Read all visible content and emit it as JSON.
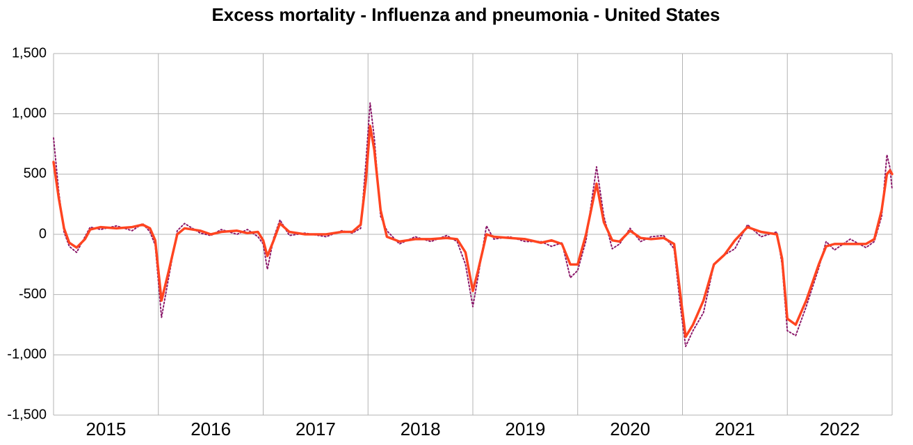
{
  "chart_data": {
    "type": "line",
    "title": "Excess mortality - Influenza and pneumonia - United States",
    "x": [
      2015.0,
      2015.05,
      2015.1,
      2015.15,
      2015.22,
      2015.3,
      2015.35,
      2015.45,
      2015.6,
      2015.75,
      2015.85,
      2015.92,
      2015.97,
      2016.03,
      2016.1,
      2016.18,
      2016.25,
      2016.4,
      2016.5,
      2016.6,
      2016.75,
      2016.85,
      2016.95,
      2017.0,
      2017.04,
      2017.1,
      2017.16,
      2017.25,
      2017.4,
      2017.6,
      2017.75,
      2017.85,
      2017.93,
      2017.98,
      2018.02,
      2018.06,
      2018.12,
      2018.18,
      2018.3,
      2018.45,
      2018.6,
      2018.75,
      2018.85,
      2018.93,
      2019.0,
      2019.05,
      2019.13,
      2019.2,
      2019.35,
      2019.5,
      2019.65,
      2019.75,
      2019.85,
      2019.93,
      2020.0,
      2020.08,
      2020.18,
      2020.25,
      2020.33,
      2020.4,
      2020.5,
      2020.6,
      2020.7,
      2020.82,
      2020.92,
      2020.98,
      2021.03,
      2021.1,
      2021.2,
      2021.3,
      2021.4,
      2021.5,
      2021.62,
      2021.75,
      2021.9,
      2021.95,
      2022.0,
      2022.08,
      2022.18,
      2022.3,
      2022.37,
      2022.45,
      2022.6,
      2022.75,
      2022.83,
      2022.9,
      2022.95,
      2022.98,
      2023.0
    ],
    "series": [
      {
        "color": "#8b1a6b",
        "dashed": true,
        "width": 2,
        "values": [
          800,
          350,
          20,
          -100,
          -150,
          -20,
          60,
          40,
          70,
          30,
          90,
          20,
          -90,
          -690,
          -350,
          30,
          90,
          10,
          -10,
          40,
          0,
          40,
          -20,
          -80,
          -290,
          -30,
          120,
          -10,
          10,
          -20,
          30,
          10,
          50,
          600,
          1090,
          800,
          150,
          30,
          -80,
          -20,
          -60,
          -10,
          -60,
          -250,
          -600,
          -350,
          70,
          -40,
          -20,
          -60,
          -60,
          -100,
          -70,
          -360,
          -300,
          -50,
          560,
          150,
          -120,
          -80,
          50,
          -60,
          -20,
          -10,
          -120,
          -600,
          -930,
          -800,
          -650,
          -250,
          -170,
          -120,
          80,
          -20,
          20,
          -250,
          -800,
          -840,
          -600,
          -280,
          -60,
          -130,
          -40,
          -110,
          -60,
          150,
          660,
          550,
          370
        ]
      },
      {
        "color": "#ff4420",
        "dashed": false,
        "width": 3.5,
        "values": [
          600,
          300,
          50,
          -70,
          -110,
          -40,
          40,
          60,
          50,
          60,
          80,
          50,
          -50,
          -550,
          -300,
          0,
          50,
          30,
          0,
          20,
          30,
          10,
          20,
          -50,
          -180,
          -50,
          90,
          20,
          0,
          0,
          20,
          20,
          80,
          450,
          900,
          700,
          200,
          -20,
          -60,
          -40,
          -40,
          -30,
          -40,
          -150,
          -470,
          -300,
          0,
          -20,
          -30,
          -40,
          -70,
          -50,
          -80,
          -250,
          -250,
          0,
          420,
          100,
          -50,
          -60,
          30,
          -30,
          -40,
          -30,
          -80,
          -500,
          -850,
          -750,
          -550,
          -250,
          -170,
          -50,
          60,
          20,
          0,
          -200,
          -700,
          -750,
          -550,
          -250,
          -100,
          -80,
          -80,
          -80,
          -40,
          200,
          500,
          530,
          500
        ]
      }
    ],
    "xlim": [
      2015,
      2023
    ],
    "xgrid": [
      2016,
      2017,
      2018,
      2019,
      2020,
      2021,
      2022
    ],
    "xticks": [
      {
        "value": 2015.5,
        "label": "2015"
      },
      {
        "value": 2016.5,
        "label": "2016"
      },
      {
        "value": 2017.5,
        "label": "2017"
      },
      {
        "value": 2018.5,
        "label": "2018"
      },
      {
        "value": 2019.5,
        "label": "2019"
      },
      {
        "value": 2020.5,
        "label": "2020"
      },
      {
        "value": 2021.5,
        "label": "2021"
      },
      {
        "value": 2022.5,
        "label": "2022"
      }
    ],
    "ylim": [
      -1500,
      1500
    ],
    "yticks": [
      {
        "value": -1500,
        "label": "-1,500"
      },
      {
        "value": -1000,
        "label": "-1,000"
      },
      -500,
      0,
      500,
      {
        "value": 1000,
        "label": "1,000"
      },
      {
        "value": 1500,
        "label": "1,500"
      }
    ],
    "grid": true
  }
}
